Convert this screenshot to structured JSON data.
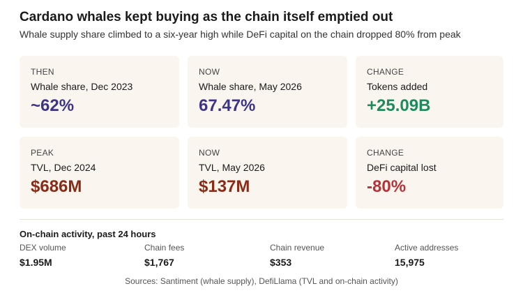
{
  "header": {
    "title": "Cardano whales kept buying as the chain itself emptied out",
    "subtitle": "Whale supply share climbed to a six-year high while DeFi capital on the chain dropped 80% from peak"
  },
  "cards": [
    {
      "label": "THEN",
      "desc": "Whale share, Dec 2023",
      "value": "~62%",
      "color": "#3d3488"
    },
    {
      "label": "NOW",
      "desc": "Whale share, May 2026",
      "value": "67.47%",
      "color": "#3d3488"
    },
    {
      "label": "CHANGE",
      "desc": "Tokens added",
      "value": "+25.09B",
      "color": "#1e8c5a"
    },
    {
      "label": "PEAK",
      "desc": "TVL, Dec 2024",
      "value": "$686M",
      "color": "#8a2b17"
    },
    {
      "label": "NOW",
      "desc": "TVL, May 2026",
      "value": "$137M",
      "color": "#8a2b17"
    },
    {
      "label": "CHANGE",
      "desc": "DeFi capital lost",
      "value": "-80%",
      "color": "#b8323a"
    }
  ],
  "activity": {
    "title": "On-chain activity, past 24 hours",
    "metrics": [
      {
        "label": "DEX volume",
        "value": "$1.95M"
      },
      {
        "label": "Chain fees",
        "value": "$1,767"
      },
      {
        "label": "Chain revenue",
        "value": "$353"
      },
      {
        "label": "Active addresses",
        "value": "15,975"
      }
    ]
  },
  "footer": {
    "sources": "Sources: Santiment (whale supply), DefiLlama (TVL and on-chain activity)"
  }
}
